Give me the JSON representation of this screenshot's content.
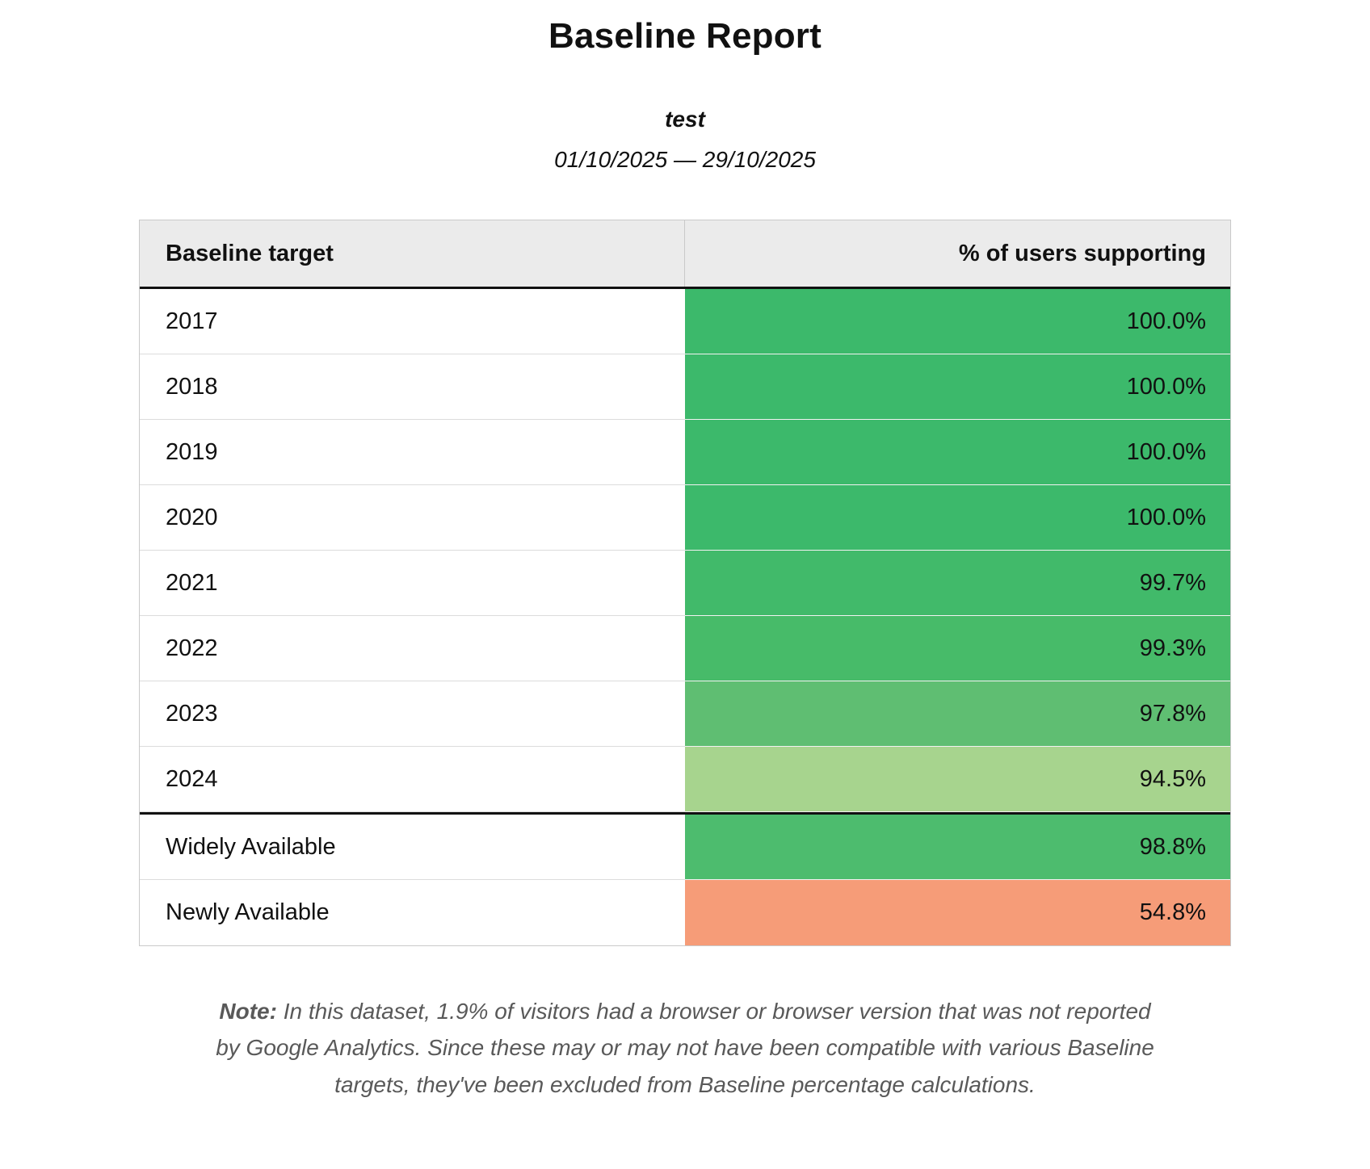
{
  "report": {
    "title": "Baseline Report",
    "subtitle": "test",
    "date_range": "01/10/2025 — 29/10/2025"
  },
  "table": {
    "headers": {
      "target": "Baseline target",
      "support": "% of users supporting"
    },
    "rows": [
      {
        "label": "2017",
        "value": "100.0%",
        "color": "#3cb96b"
      },
      {
        "label": "2018",
        "value": "100.0%",
        "color": "#3cb96b"
      },
      {
        "label": "2019",
        "value": "100.0%",
        "color": "#3cb96b"
      },
      {
        "label": "2020",
        "value": "100.0%",
        "color": "#3cb96b"
      },
      {
        "label": "2021",
        "value": "99.7%",
        "color": "#41ba6a"
      },
      {
        "label": "2022",
        "value": "99.3%",
        "color": "#47bb69"
      },
      {
        "label": "2023",
        "value": "97.8%",
        "color": "#5fbe72"
      },
      {
        "label": "2024",
        "value": "94.5%",
        "color": "#a7d48e"
      },
      {
        "label": "Widely Available",
        "value": "98.8%",
        "color": "#4dbc6e"
      },
      {
        "label": "Newly Available",
        "value": "54.8%",
        "color": "#f69c78"
      }
    ]
  },
  "note": {
    "label": "Note:",
    "text": "In this dataset, 1.9% of visitors had a browser or browser version that was not reported by Google Analytics. Since these may or may not have been compatible with various Baseline targets, they've been excluded from Baseline percentage calculations."
  },
  "colors": {
    "header_bg": "#ebebeb",
    "divider": "#111111",
    "table_border": "#c9c9c9",
    "note_text": "#595959"
  }
}
